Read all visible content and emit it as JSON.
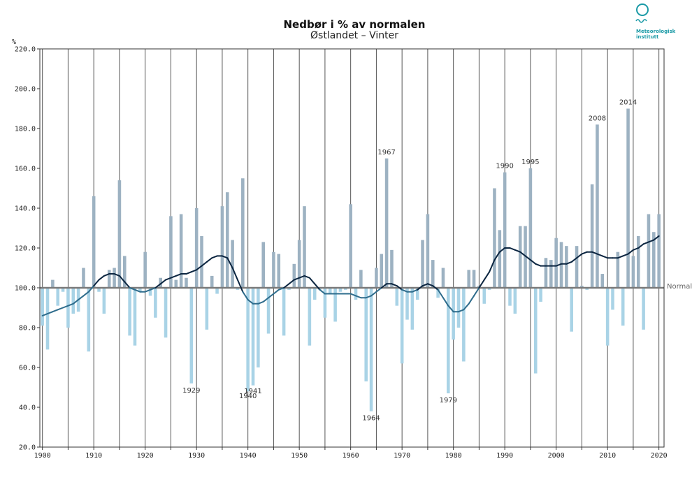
{
  "chart_data": {
    "type": "bar",
    "title": "Nedbør i % av normalen",
    "subtitle": "Østlandet – Vinter",
    "ylabel": "%",
    "xlabel": "",
    "ylim": [
      20,
      220
    ],
    "xlim": [
      1899.5,
      2021
    ],
    "yticks": [
      "20.0",
      "40.0",
      "60.0",
      "80.0",
      "100.0",
      "120.0",
      "140.0",
      "160.0",
      "180.0",
      "200.0",
      "220.0"
    ],
    "xticks": [
      1900,
      1910,
      1920,
      1930,
      1940,
      1950,
      1960,
      1970,
      1980,
      1990,
      2000,
      2010,
      2020
    ],
    "normal_value": 100,
    "normal_label": "Normal",
    "years": [
      1900,
      1901,
      1902,
      1903,
      1904,
      1905,
      1906,
      1907,
      1908,
      1909,
      1910,
      1911,
      1912,
      1913,
      1914,
      1915,
      1916,
      1917,
      1918,
      1919,
      1920,
      1921,
      1922,
      1923,
      1924,
      1925,
      1926,
      1927,
      1928,
      1929,
      1930,
      1931,
      1932,
      1933,
      1934,
      1935,
      1936,
      1937,
      1938,
      1939,
      1940,
      1941,
      1942,
      1943,
      1944,
      1945,
      1946,
      1947,
      1948,
      1949,
      1950,
      1951,
      1952,
      1953,
      1954,
      1955,
      1956,
      1957,
      1958,
      1959,
      1960,
      1961,
      1962,
      1963,
      1964,
      1965,
      1966,
      1967,
      1968,
      1969,
      1970,
      1971,
      1972,
      1973,
      1974,
      1975,
      1976,
      1977,
      1978,
      1979,
      1980,
      1981,
      1982,
      1983,
      1984,
      1985,
      1986,
      1987,
      1988,
      1989,
      1990,
      1991,
      1992,
      1993,
      1994,
      1995,
      1996,
      1997,
      1998,
      1999,
      2000,
      2001,
      2002,
      2003,
      2004,
      2005,
      2006,
      2007,
      2008,
      2009,
      2010,
      2011,
      2012,
      2013,
      2014,
      2015,
      2016,
      2017,
      2018,
      2019,
      2020
    ],
    "values": [
      81,
      69,
      104,
      91,
      98,
      80,
      87,
      88,
      110,
      68,
      146,
      98,
      87,
      109,
      110,
      154,
      116,
      76,
      71,
      98,
      118,
      96,
      85,
      105,
      75,
      136,
      104,
      137,
      105,
      52,
      140,
      126,
      79,
      106,
      97,
      141,
      148,
      124,
      99,
      155,
      48,
      51,
      60,
      123,
      77,
      118,
      117,
      76,
      99,
      112,
      124,
      141,
      71,
      94,
      99,
      85,
      97,
      83,
      98,
      99,
      142,
      94,
      109,
      53,
      38,
      110,
      117,
      165,
      119,
      91,
      62,
      84,
      79,
      94,
      124,
      137,
      114,
      95,
      110,
      47,
      74,
      80,
      63,
      109,
      109,
      101,
      92,
      99,
      150,
      129,
      158,
      91,
      87,
      131,
      131,
      160,
      57,
      93,
      115,
      114,
      125,
      123,
      121,
      78,
      121,
      101,
      99,
      152,
      182,
      107,
      71,
      89,
      118,
      81,
      190,
      116,
      126,
      79,
      137,
      128,
      137
    ],
    "smoothed": [
      86,
      87,
      88,
      89,
      90,
      91,
      92,
      94,
      96,
      98,
      101,
      104,
      106,
      107,
      107,
      106,
      103,
      100,
      99,
      98,
      98,
      99,
      100,
      102,
      104,
      105,
      106,
      107,
      107,
      108,
      109,
      111,
      113,
      115,
      116,
      116,
      115,
      110,
      104,
      98,
      94,
      92,
      92,
      93,
      95,
      97,
      99,
      100,
      102,
      104,
      105,
      106,
      105,
      102,
      99,
      97,
      97,
      97,
      97,
      97,
      97,
      96,
      95,
      95,
      96,
      98,
      100,
      102,
      102,
      101,
      99,
      98,
      98,
      99,
      101,
      102,
      101,
      99,
      95,
      91,
      88,
      88,
      89,
      92,
      96,
      100,
      104,
      108,
      114,
      118,
      120,
      120,
      119,
      118,
      116,
      114,
      112,
      111,
      111,
      111,
      111,
      112,
      112,
      113,
      115,
      117,
      118,
      118,
      117,
      116,
      115,
      115,
      115,
      116,
      117,
      119,
      120,
      122,
      123,
      124,
      126
    ],
    "annotations": [
      {
        "year": 1929,
        "label": "1929"
      },
      {
        "year": 1940,
        "label": "1940"
      },
      {
        "year": 1941,
        "label": "1941"
      },
      {
        "year": 1964,
        "label": "1964"
      },
      {
        "year": 1967,
        "label": "1967"
      },
      {
        "year": 1979,
        "label": "1979"
      },
      {
        "year": 1990,
        "label": "1990"
      },
      {
        "year": 1995,
        "label": "1995"
      },
      {
        "year": 2008,
        "label": "2008"
      },
      {
        "year": 2014,
        "label": "2014"
      }
    ],
    "colors": {
      "above": "#9db2c2",
      "below": "#a9d3e6",
      "normal_line": "#7a7a7a",
      "smooth_above": "#0b2540",
      "smooth_below": "#2e6c8c",
      "grid": "#555555",
      "frame": "#333333"
    }
  },
  "logo": {
    "icon": "met-logo-icon",
    "line1": "Meteorologisk",
    "line2": "institutt",
    "color": "#1a9aa6"
  }
}
